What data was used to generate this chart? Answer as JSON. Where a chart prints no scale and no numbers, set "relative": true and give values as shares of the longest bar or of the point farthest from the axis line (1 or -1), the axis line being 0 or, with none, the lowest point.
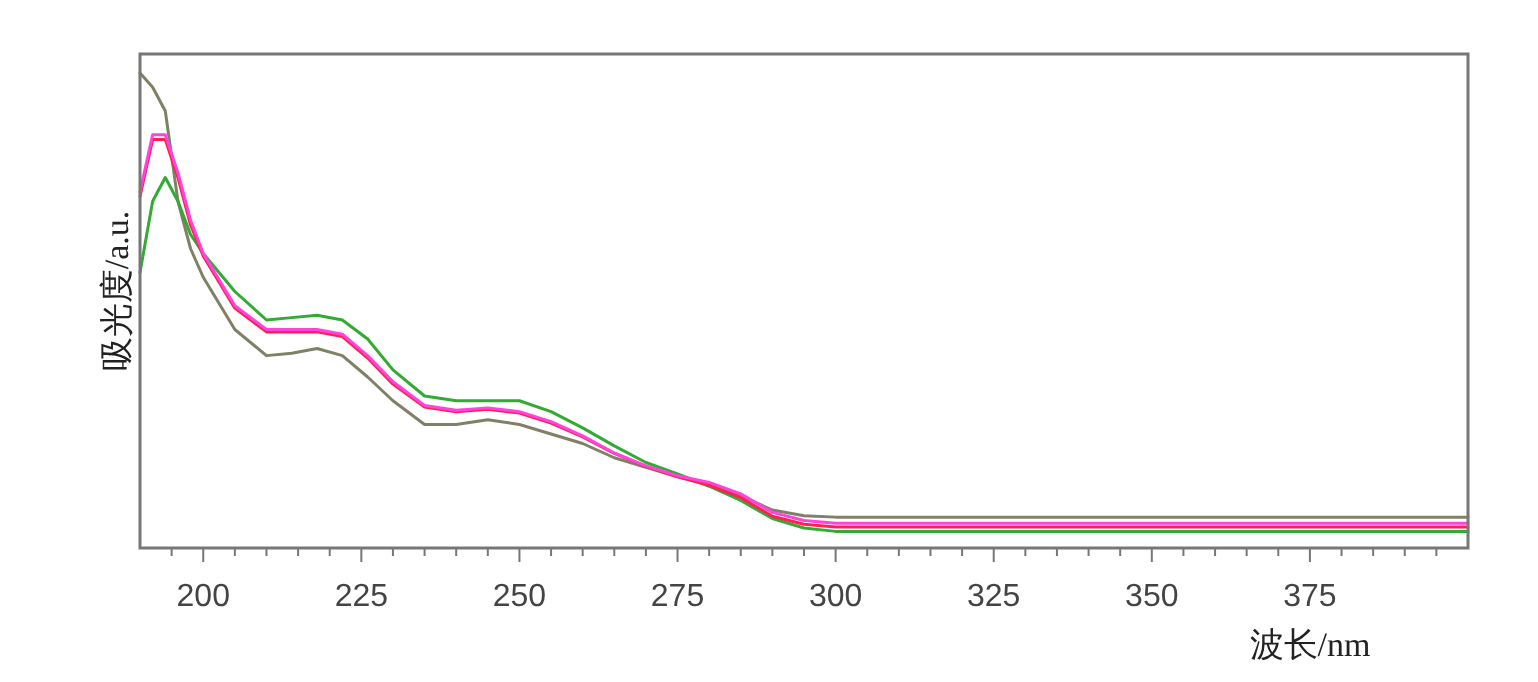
{
  "chart_data": {
    "type": "line",
    "relative": true,
    "xlabel": "波长/nm",
    "ylabel": "吸光度/a.u.",
    "xlim": [
      190,
      400
    ],
    "xticks": [
      {
        "value": 195,
        "label": null
      },
      200,
      {
        "value": 205,
        "label": null
      },
      {
        "value": 210,
        "label": null
      },
      {
        "value": 215,
        "label": null
      },
      {
        "value": 220,
        "label": null
      },
      225,
      {
        "value": 230,
        "label": null
      },
      {
        "value": 235,
        "label": null
      },
      {
        "value": 240,
        "label": null
      },
      {
        "value": 245,
        "label": null
      },
      250,
      {
        "value": 255,
        "label": null
      },
      {
        "value": 260,
        "label": null
      },
      {
        "value": 265,
        "label": null
      },
      {
        "value": 270,
        "label": null
      },
      275,
      {
        "value": 280,
        "label": null
      },
      {
        "value": 285,
        "label": null
      },
      {
        "value": 290,
        "label": null
      },
      {
        "value": 295,
        "label": null
      },
      300,
      {
        "value": 305,
        "label": null
      },
      {
        "value": 310,
        "label": null
      },
      {
        "value": 315,
        "label": null
      },
      {
        "value": 320,
        "label": null
      },
      325,
      {
        "value": 330,
        "label": null
      },
      {
        "value": 335,
        "label": null
      },
      {
        "value": 340,
        "label": null
      },
      {
        "value": 345,
        "label": null
      },
      350,
      {
        "value": 355,
        "label": null
      },
      {
        "value": 360,
        "label": null
      },
      {
        "value": 365,
        "label": null
      },
      {
        "value": 370,
        "label": null
      },
      375,
      {
        "value": 380,
        "label": null
      },
      {
        "value": 385,
        "label": null
      },
      {
        "value": 390,
        "label": null
      },
      {
        "value": 395,
        "label": null
      }
    ],
    "x": [
      190,
      192,
      194,
      196,
      198,
      200,
      205,
      210,
      214,
      218,
      222,
      226,
      230,
      235,
      240,
      245,
      250,
      255,
      260,
      265,
      270,
      275,
      280,
      285,
      290,
      295,
      300,
      400
    ],
    "grid": false,
    "marker": "none",
    "line_style": "solid",
    "series": [
      {
        "color": "#808066",
        "values": [
          1.0,
          0.97,
          0.92,
          0.73,
          0.63,
          0.57,
          0.46,
          0.405,
          0.41,
          0.42,
          0.405,
          0.36,
          0.31,
          0.26,
          0.26,
          0.27,
          0.26,
          0.24,
          0.22,
          0.19,
          0.17,
          0.15,
          0.135,
          0.11,
          0.08,
          0.068,
          0.065,
          0.065
        ]
      },
      {
        "color": "#33aa33",
        "values": [
          0.58,
          0.73,
          0.78,
          0.73,
          0.66,
          0.62,
          0.54,
          0.48,
          0.485,
          0.49,
          0.48,
          0.44,
          0.375,
          0.32,
          0.31,
          0.31,
          0.31,
          0.287,
          0.253,
          0.215,
          0.18,
          0.156,
          0.13,
          0.1,
          0.062,
          0.042,
          0.035,
          0.035
        ]
      },
      {
        "color": "#ff2050",
        "values": [
          0.74,
          0.86,
          0.86,
          0.78,
          0.68,
          0.615,
          0.505,
          0.455,
          0.455,
          0.455,
          0.445,
          0.4,
          0.345,
          0.297,
          0.287,
          0.292,
          0.284,
          0.263,
          0.234,
          0.199,
          0.172,
          0.15,
          0.132,
          0.106,
          0.067,
          0.05,
          0.044,
          0.044
        ]
      },
      {
        "color": "#ff44dd",
        "values": [
          0.75,
          0.87,
          0.87,
          0.79,
          0.69,
          0.62,
          0.51,
          0.46,
          0.46,
          0.46,
          0.45,
          0.405,
          0.35,
          0.3,
          0.29,
          0.295,
          0.287,
          0.266,
          0.236,
          0.2,
          0.173,
          0.152,
          0.138,
          0.114,
          0.075,
          0.058,
          0.052,
          0.052
        ]
      }
    ]
  }
}
